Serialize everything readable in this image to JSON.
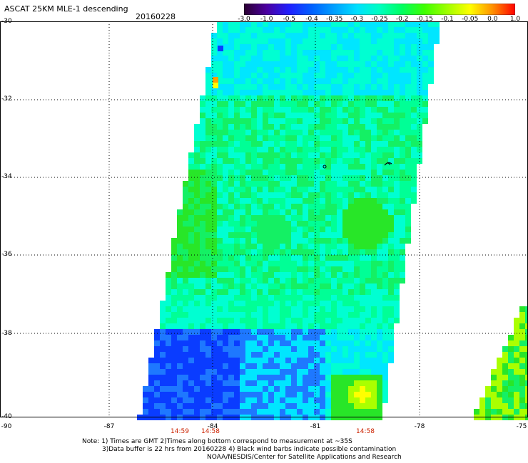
{
  "header": {
    "title": "ASCAT 25KM MLE-1 descending",
    "date": "20160228"
  },
  "colorbar": {
    "ticks": [
      "-3.0",
      "-1.0",
      "-0.5",
      "-0.4",
      "-0.35",
      "-0.3",
      "-0.25",
      "-0.2",
      "-0.15",
      "-0.1",
      "-0.05",
      "0.0",
      "1.0"
    ],
    "colors": [
      "#2a0030",
      "#4b00a0",
      "#2020ff",
      "#0060ff",
      "#00a0ff",
      "#00e0ff",
      "#00ffc0",
      "#00ff60",
      "#40ff00",
      "#a0ff00",
      "#ffff00",
      "#ff9000",
      "#ff0000"
    ]
  },
  "axes": {
    "lat_labels": [
      "-30",
      "-32",
      "-34",
      "-36",
      "-38",
      "-40"
    ],
    "lon_labels": [
      "-90",
      "-87",
      "-84",
      "-81",
      "-78",
      "-75"
    ]
  },
  "times": [
    "14:59",
    "14:58",
    "14:58"
  ],
  "notes": [
    "Note: 1) Times are GMT 2)Times along bottom correspond to measurement at ~35S",
    "3)Data buffer is 22 hrs from 20160228 4) Black wind barbs indicate possible contamination",
    "NOAA/NESDIS/Center for Satellite Applications and Research"
  ],
  "palette": {
    "deep_blue": "#0a3cff",
    "mid_blue": "#1e78ff",
    "cyan": "#00e6ff",
    "aqua": "#00ffd2",
    "green_aqua": "#00ff96",
    "green": "#14f064",
    "bright_green": "#28e628",
    "lime": "#aaff00",
    "yellow": "#ffff00",
    "orange": "#ffa000"
  }
}
